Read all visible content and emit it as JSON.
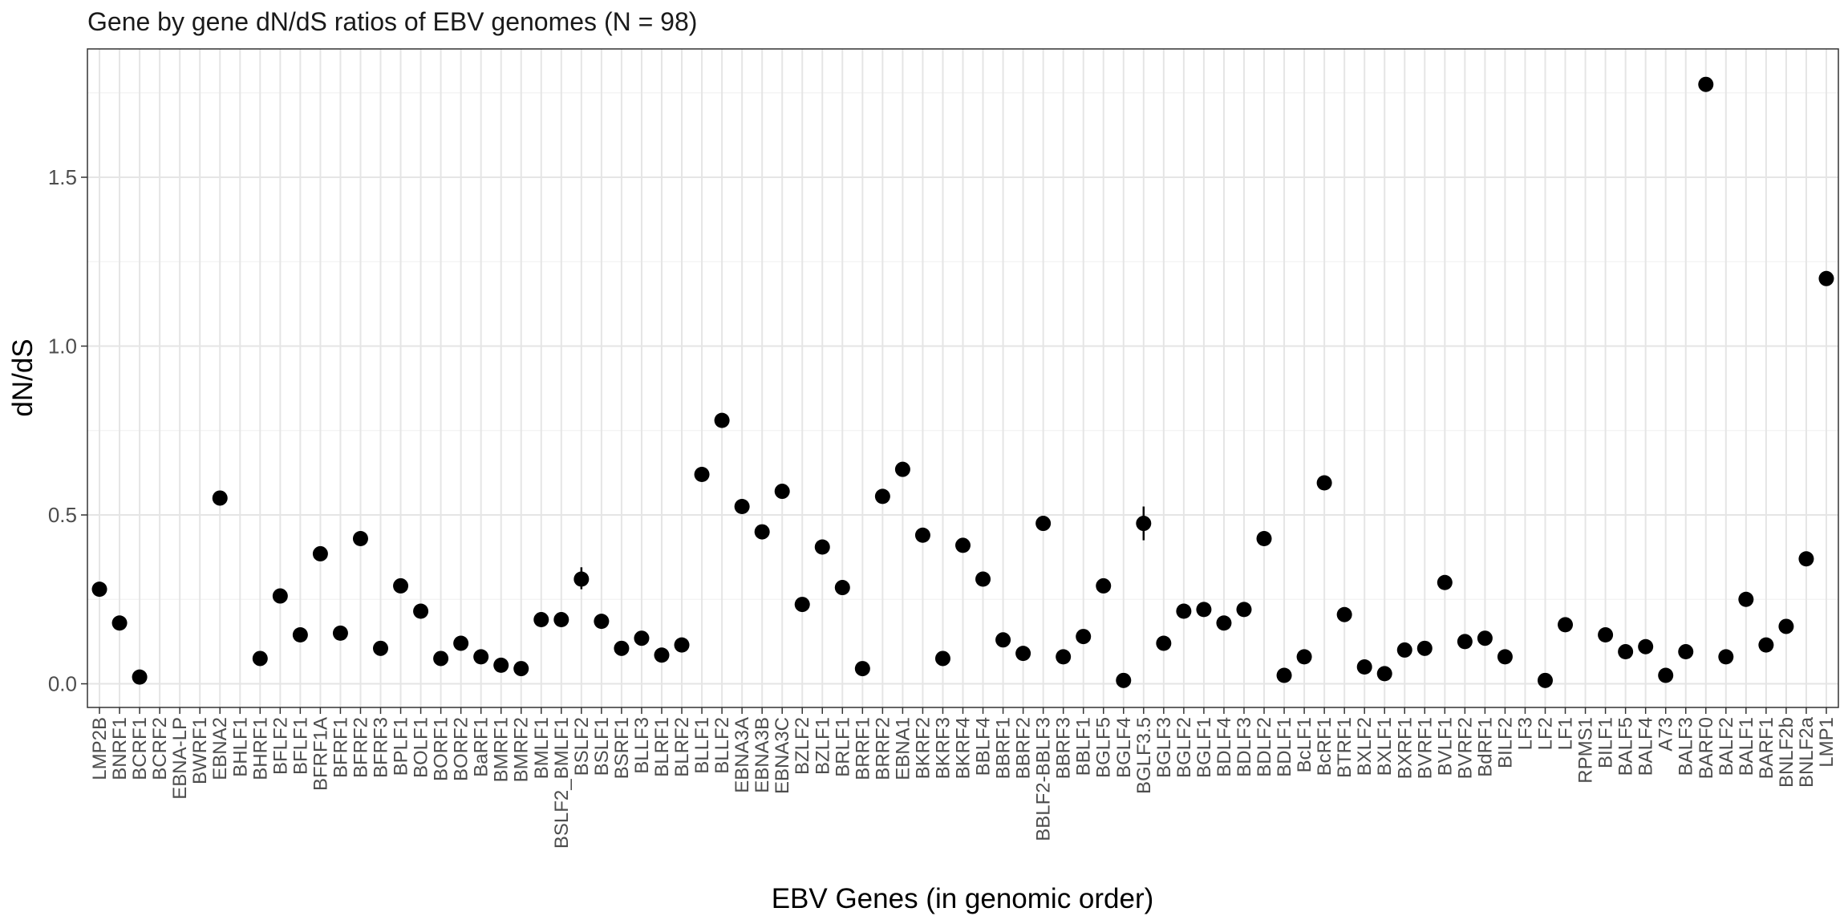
{
  "chart_data": {
    "type": "scatter",
    "title": "Gene by gene dN/dS ratios of EBV genomes (N = 98)",
    "xlabel": "EBV Genes (in genomic order)",
    "ylabel": "dN/dS",
    "ylim": [
      -0.07,
      1.88
    ],
    "yticks": [
      0.0,
      0.5,
      1.0,
      1.5
    ],
    "ytick_labels": [
      "0.0",
      "0.5",
      "1.0",
      "1.5"
    ],
    "grid": true,
    "legend": "none",
    "point_color": "#000000",
    "categories": [
      "LMP2B",
      "BNRF1",
      "BCRF1",
      "BCRF2",
      "EBNA-LP",
      "BWRF1",
      "EBNA2",
      "BHLF1",
      "BHRF1",
      "BFLF2",
      "BFLF1",
      "BFRF1A",
      "BFRF1",
      "BFRF2",
      "BFRF3",
      "BPLF1",
      "BOLF1",
      "BORF1",
      "BORF2",
      "BaRF1",
      "BMRF1",
      "BMRF2",
      "BMLF1",
      "BSLF2_BMLF1",
      "BSLF2",
      "BSLF1",
      "BSRF1",
      "BLLF3",
      "BLRF1",
      "BLRF2",
      "BLLF1",
      "BLLF2",
      "EBNA3A",
      "EBNA3B",
      "EBNA3C",
      "BZLF2",
      "BZLF1",
      "BRLF1",
      "BRRF1",
      "BRRF2",
      "EBNA1",
      "BKRF2",
      "BKRF3",
      "BKRF4",
      "BBLF4",
      "BBRF1",
      "BBRF2",
      "BBLF2-BBLF3",
      "BBRF3",
      "BBLF1",
      "BGLF5",
      "BGLF4",
      "BGLF3.5",
      "BGLF3",
      "BGLF2",
      "BGLF1",
      "BDLF4",
      "BDLF3",
      "BDLF2",
      "BDLF1",
      "BcLF1",
      "BcRF1",
      "BTRF1",
      "BXLF2",
      "BXLF1",
      "BXRF1",
      "BVRF1",
      "BVLF1",
      "BVRF2",
      "BdRF1",
      "BILF2",
      "LF3",
      "LF2",
      "LF1",
      "RPMS1",
      "BILF1",
      "BALF5",
      "BALF4",
      "A73",
      "BALF3",
      "BARF0",
      "BALF2",
      "BALF1",
      "BARF1",
      "BNLF2b",
      "BNLF2a",
      "LMP1"
    ],
    "values": [
      0.28,
      0.18,
      0.02,
      null,
      null,
      null,
      0.55,
      null,
      0.075,
      0.26,
      0.145,
      0.385,
      0.15,
      0.43,
      0.105,
      0.29,
      0.215,
      0.075,
      0.12,
      0.08,
      0.055,
      0.045,
      0.19,
      0.19,
      0.31,
      0.185,
      0.105,
      0.135,
      0.085,
      0.115,
      0.62,
      0.78,
      0.525,
      0.45,
      0.57,
      0.235,
      0.405,
      0.285,
      0.045,
      0.555,
      0.635,
      0.44,
      0.075,
      0.41,
      0.31,
      0.13,
      0.09,
      0.475,
      0.08,
      0.14,
      0.29,
      0.01,
      0.475,
      0.12,
      0.215,
      0.22,
      0.18,
      0.22,
      0.43,
      0.025,
      0.08,
      0.595,
      0.205,
      0.05,
      0.03,
      0.1,
      0.105,
      0.3,
      0.125,
      0.135,
      0.08,
      null,
      0.01,
      0.175,
      null,
      0.145,
      0.095,
      0.11,
      0.025,
      0.095,
      1.775,
      0.08,
      0.25,
      0.115,
      0.17,
      0.37,
      1.2
    ],
    "error_low": [
      null,
      null,
      null,
      null,
      null,
      null,
      null,
      null,
      null,
      null,
      null,
      null,
      null,
      null,
      null,
      null,
      null,
      null,
      null,
      null,
      null,
      null,
      null,
      null,
      0.28,
      null,
      null,
      null,
      null,
      null,
      null,
      null,
      null,
      null,
      null,
      null,
      null,
      null,
      null,
      null,
      null,
      null,
      null,
      null,
      null,
      null,
      null,
      null,
      null,
      null,
      null,
      null,
      0.425,
      null,
      null,
      null,
      null,
      null,
      null,
      null,
      null,
      null,
      null,
      null,
      null,
      null,
      null,
      null,
      null,
      null,
      null,
      null,
      null,
      null,
      null,
      null,
      null,
      null,
      null,
      null,
      null,
      null,
      null,
      null,
      null,
      null,
      null
    ],
    "error_high": [
      null,
      null,
      null,
      null,
      null,
      null,
      null,
      null,
      null,
      null,
      null,
      null,
      null,
      null,
      null,
      null,
      null,
      null,
      null,
      null,
      null,
      null,
      null,
      null,
      0.345,
      null,
      null,
      null,
      null,
      null,
      null,
      null,
      null,
      null,
      null,
      null,
      null,
      null,
      null,
      null,
      null,
      null,
      null,
      null,
      null,
      null,
      null,
      null,
      null,
      null,
      null,
      null,
      0.525,
      null,
      null,
      null,
      null,
      null,
      null,
      null,
      null,
      null,
      null,
      null,
      null,
      null,
      null,
      null,
      null,
      null,
      null,
      null,
      null,
      null,
      null,
      null,
      null,
      null,
      null,
      null,
      null,
      null,
      null,
      null,
      null,
      null,
      null
    ]
  }
}
